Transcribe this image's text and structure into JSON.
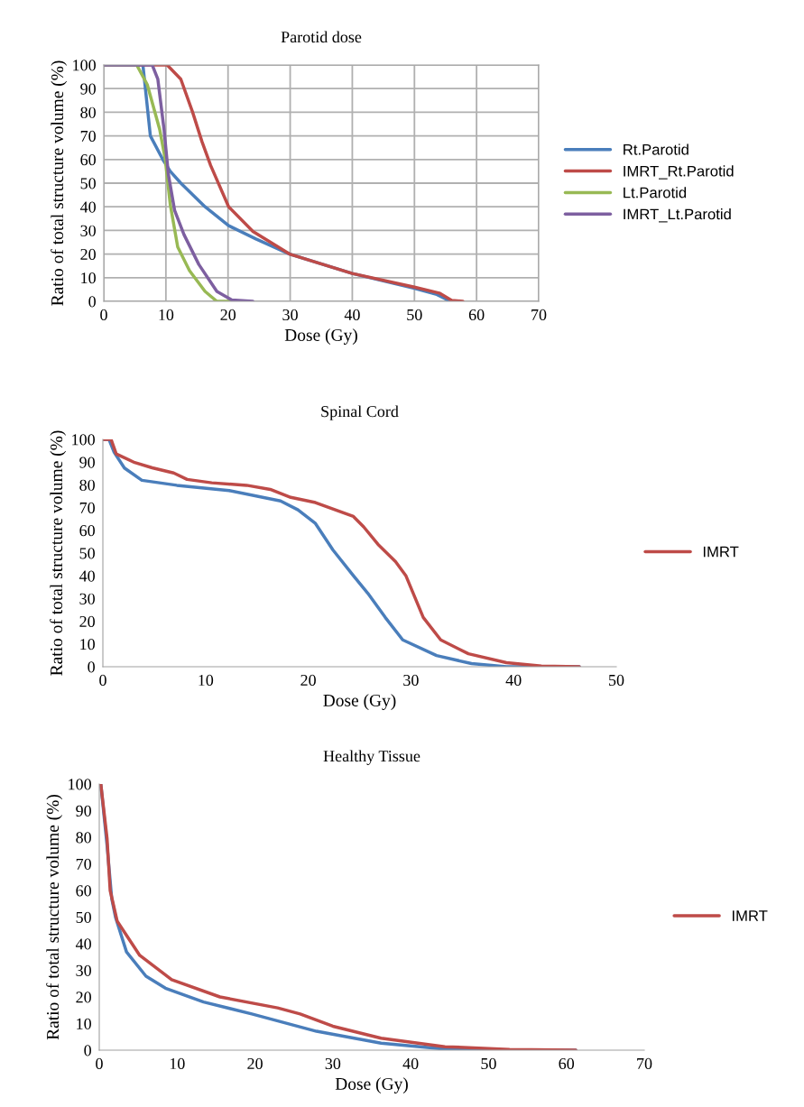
{
  "chart_data": [
    {
      "type": "line",
      "title": "Parotid dose",
      "xlabel": "Dose (Gy)",
      "ylabel": "Ratio of total structure volume (%)",
      "xlim": [
        0,
        70
      ],
      "ylim": [
        0,
        100
      ],
      "xticks": [
        0,
        10,
        20,
        30,
        40,
        50,
        60,
        70
      ],
      "yticks": [
        0,
        10,
        20,
        30,
        40,
        50,
        60,
        70,
        80,
        90,
        100
      ],
      "grid": true,
      "legend": "right",
      "series": [
        {
          "name": "Rt.Parotid",
          "color": "#4a7ebb",
          "x": [
            0,
            6.3,
            7.5,
            9.5,
            10.7,
            12.4,
            16.3,
            20.1,
            24.5,
            29.9,
            40,
            50,
            53.6,
            55.8
          ],
          "values": [
            100,
            100,
            70,
            60,
            55,
            50,
            40,
            32,
            26.4,
            20,
            11.8,
            5.5,
            2.9,
            0
          ]
        },
        {
          "name": "IMRT_Rt.Parotid",
          "color": "#be4b48",
          "x": [
            0,
            10.2,
            12.4,
            14.3,
            15.8,
            17.2,
            20.1,
            24,
            29.9,
            40,
            50,
            54,
            56,
            57.8
          ],
          "values": [
            100,
            100,
            94,
            80,
            67.6,
            57.5,
            40,
            29.6,
            20,
            11.8,
            6,
            3.5,
            0.4,
            0
          ]
        },
        {
          "name": "Lt.Parotid",
          "color": "#98b954",
          "x": [
            0,
            5.3,
            7,
            9,
            9.9,
            10.7,
            11.9,
            13.8,
            16.3,
            18.2,
            22.1
          ],
          "values": [
            100,
            100,
            91.7,
            72.7,
            60,
            41,
            23,
            13,
            4.2,
            0,
            0
          ]
        },
        {
          "name": "IMRT_Lt.Parotid",
          "color": "#7d5fa0",
          "x": [
            0,
            7.8,
            8.7,
            9.7,
            10.4,
            11.4,
            12.9,
            15.3,
            18.2,
            20.6,
            24
          ],
          "values": [
            100,
            100,
            94,
            72.7,
            53.7,
            38.5,
            28.3,
            15.6,
            4.2,
            0.6,
            0
          ]
        }
      ]
    },
    {
      "type": "line",
      "title": "Spinal Cord",
      "xlabel": "Dose (Gy)",
      "ylabel": "Ratio of total structure volume (%)",
      "xlim": [
        0,
        50
      ],
      "ylim": [
        0,
        100
      ],
      "xticks": [
        0,
        10,
        20,
        30,
        40,
        50
      ],
      "yticks": [
        0,
        10,
        20,
        30,
        40,
        50,
        60,
        70,
        80,
        90,
        100
      ],
      "grid": false,
      "legend": "right",
      "series": [
        {
          "color": "#4a7ebb",
          "x": [
            0,
            0.6,
            1.1,
            2.1,
            3.8,
            7.2,
            12.3,
            17.3,
            19,
            20.7,
            22.4,
            24.4,
            25.8,
            27.5,
            29.2,
            32.5,
            35.9,
            39.3,
            46.4
          ],
          "values": [
            100,
            100,
            94.3,
            87.4,
            82,
            79.8,
            77.5,
            72.9,
            69,
            63,
            51.4,
            40,
            32.3,
            21.7,
            11.8,
            4.9,
            1.4,
            0,
            0
          ]
        },
        {
          "name": "IMRT",
          "color": "#be4b48",
          "x": [
            0,
            0.8,
            1.3,
            3.1,
            4.8,
            6.9,
            8.2,
            10.6,
            14,
            16.3,
            18.3,
            20.7,
            24.4,
            25.4,
            26.8,
            28.5,
            29.5,
            31.2,
            32.9,
            35.6,
            39.3,
            42.7,
            46.4
          ],
          "values": [
            100,
            100,
            93.6,
            89.8,
            87.5,
            85.2,
            82.4,
            80.9,
            79.8,
            78,
            74.5,
            72.2,
            66.1,
            61.5,
            53.8,
            46.2,
            40.1,
            21.7,
            11.8,
            5.7,
            1.8,
            0.3,
            0
          ]
        }
      ]
    },
    {
      "type": "line",
      "title": "Healthy Tissue",
      "xlabel": "Dose (Gy)",
      "ylabel": "Ratio of total structure volume (%)",
      "xlim": [
        0,
        70
      ],
      "ylim": [
        0,
        100
      ],
      "xticks": [
        0,
        10,
        20,
        30,
        40,
        50,
        60,
        70
      ],
      "yticks": [
        0,
        10,
        20,
        30,
        40,
        50,
        60,
        70,
        80,
        90,
        100
      ],
      "grid": false,
      "legend": "right",
      "series": [
        {
          "color": "#4a7ebb",
          "x": [
            0.2,
            1,
            1.6,
            2.1,
            3.5,
            6,
            8.5,
            13.4,
            19.6,
            27.9,
            36.2,
            44.4,
            52.7,
            61.2
          ],
          "values": [
            100,
            77,
            57,
            49.8,
            36.9,
            27.8,
            23.3,
            18.1,
            13.6,
            7.1,
            2.6,
            0.4,
            0,
            0
          ]
        },
        {
          "name": "IMRT",
          "color": "#be4b48",
          "x": [
            0.2,
            1,
            1.4,
            2.3,
            5.2,
            9.3,
            15.5,
            22.9,
            25.8,
            30,
            36.2,
            44.4,
            52.7,
            61.2
          ],
          "values": [
            100,
            79.6,
            60,
            48.5,
            35.6,
            26.5,
            20,
            15.9,
            13.6,
            9,
            4.5,
            1.3,
            0.3,
            0
          ]
        }
      ]
    }
  ]
}
